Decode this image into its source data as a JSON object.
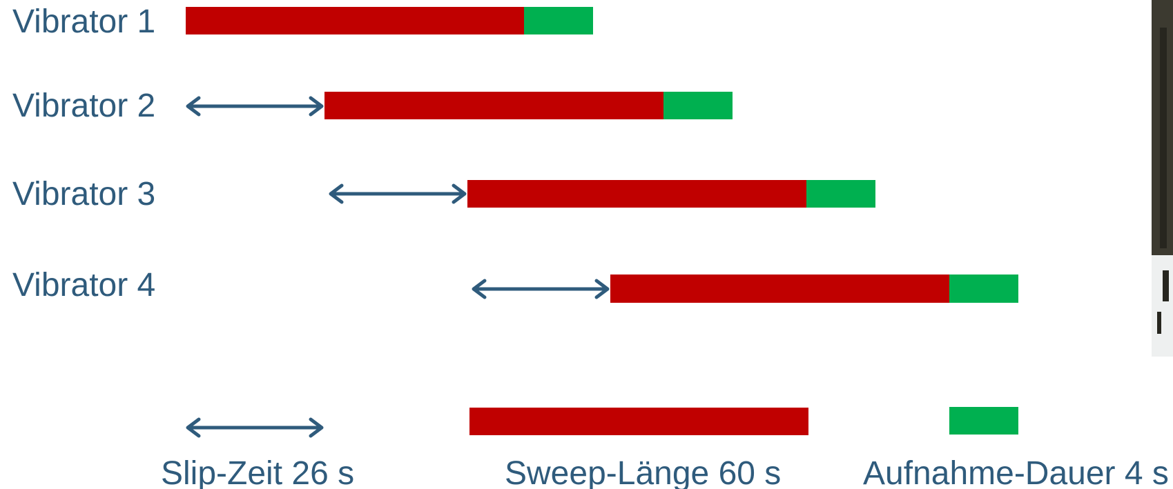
{
  "rows": [
    {
      "label": "Vibrator 1"
    },
    {
      "label": "Vibrator 2"
    },
    {
      "label": "Vibrator 3"
    },
    {
      "label": "Vibrator 4"
    }
  ],
  "legend": {
    "slip": "Slip-Zeit 26 s",
    "sweep": "Sweep-Länge 60 s",
    "record": "Aufnahme-Dauer 4 s"
  },
  "colors": {
    "sweep": "#c00000",
    "record": "#00b050",
    "text": "#2f5b7c"
  },
  "icons": {
    "slip_arrow": "double-headed-arrow",
    "photo": "winter-field-photo"
  }
}
